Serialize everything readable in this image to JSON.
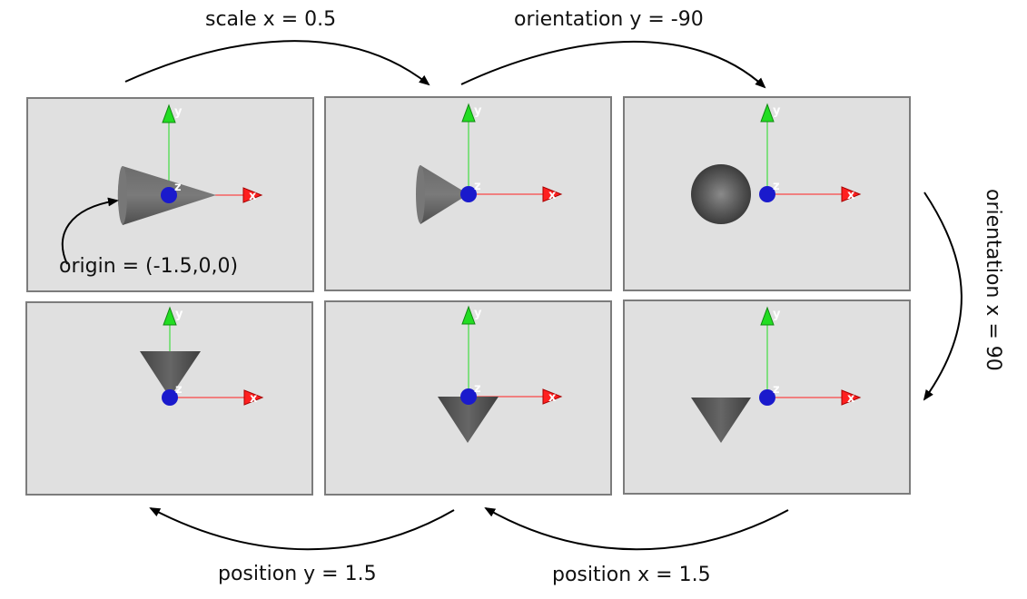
{
  "transitions": {
    "scale_x": "scale x = 0.5",
    "orientation_y": "orientation y = -90",
    "orientation_x": "orientation x = 90",
    "position_x": "position x = 1.5",
    "position_y": "position y = 1.5"
  },
  "annotation": {
    "origin": "origin = (-1.5,0,0)"
  },
  "axis_letters": {
    "x": "x",
    "y": "y",
    "z": "z"
  },
  "colors": {
    "panel_bg": "#e0e0e0",
    "panel_border": "#7c7c7c",
    "x_axis": "#ff2020",
    "y_axis": "#22dd22",
    "z_axis": "#1a1acc",
    "cone": "#5a5a5a"
  },
  "steps": [
    {
      "id": "initial",
      "cone_view": "pointing-right"
    },
    {
      "id": "scaled",
      "cone_view": "short-pointing-right"
    },
    {
      "id": "oriented-y",
      "cone_view": "base-facing-viewer"
    },
    {
      "id": "oriented-x",
      "cone_view": "pointing-down"
    },
    {
      "id": "positioned-x",
      "cone_view": "pointing-down-right"
    },
    {
      "id": "positioned-y",
      "cone_view": "pointing-down-above"
    }
  ]
}
